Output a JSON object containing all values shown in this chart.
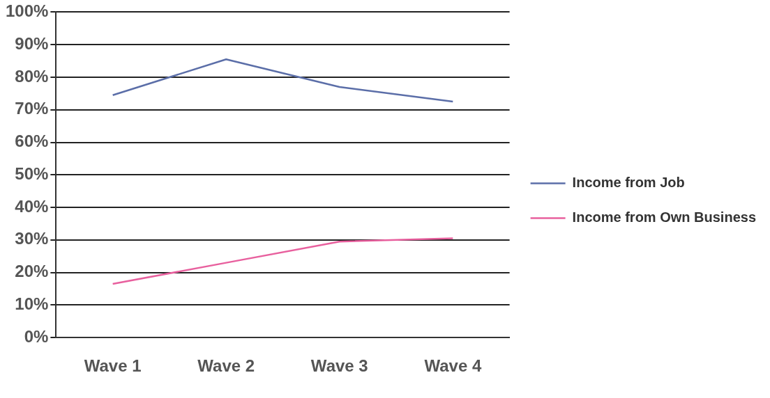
{
  "chart_data": {
    "type": "line",
    "categories": [
      "Wave 1",
      "Wave 2",
      "Wave 3",
      "Wave 4"
    ],
    "series": [
      {
        "name": "Income from Job",
        "color": "#5b6ea8",
        "values": [
          74.5,
          85.5,
          77,
          72.5
        ]
      },
      {
        "name": "Income from Own Business",
        "color": "#e8609e",
        "values": [
          16.5,
          23,
          29.5,
          30.5
        ]
      }
    ],
    "ylim": [
      0,
      100
    ],
    "yticks": [
      {
        "value": 0,
        "label": "0%"
      },
      {
        "value": 10,
        "label": "10%"
      },
      {
        "value": 20,
        "label": "20%"
      },
      {
        "value": 30,
        "label": "30%"
      },
      {
        "value": 40,
        "label": "40%"
      },
      {
        "value": 50,
        "label": "50%"
      },
      {
        "value": 60,
        "label": "60%"
      },
      {
        "value": 70,
        "label": "70%"
      },
      {
        "value": 80,
        "label": "80%"
      },
      {
        "value": 90,
        "label": "90%"
      },
      {
        "value": 100,
        "label": "100%"
      }
    ],
    "grid": "y",
    "legend": "right",
    "marker": "none",
    "line_style": "solid"
  }
}
